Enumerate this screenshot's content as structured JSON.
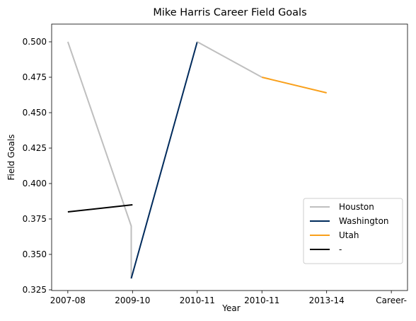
{
  "chart_data": {
    "type": "line",
    "title": "Mike Harris  Career Field Goals",
    "xlabel": "Year",
    "ylabel": "Field Goals",
    "x_ticks": [
      "2007-08",
      "2009-10",
      "2010-11",
      "2010-11",
      "2013-14",
      "Career-"
    ],
    "y_ticks": [
      "0.325",
      "0.350",
      "0.375",
      "0.400",
      "0.425",
      "0.450",
      "0.475",
      "0.500"
    ],
    "xlim": [
      -0.25,
      5.25
    ],
    "ylim": [
      0.3245,
      0.5125
    ],
    "legend_position": "lower-right",
    "grid": false,
    "series": [
      {
        "name": "Houston",
        "color": "#bfbfbf",
        "points": [
          [
            0,
            0.5
          ],
          [
            0.98,
            0.37
          ],
          [
            0.98,
            0.333
          ]
        ]
      },
      {
        "name": "Washington",
        "color": "#002b5c",
        "points": [
          [
            0.98,
            0.333
          ],
          [
            2.0,
            0.5
          ]
        ]
      },
      {
        "name": "Houston",
        "color": "#bfbfbf",
        "legend": false,
        "points": [
          [
            2.0,
            0.5
          ],
          [
            3.0,
            0.475
          ]
        ]
      },
      {
        "name": "Utah",
        "color": "#f9a01b",
        "points": [
          [
            3.0,
            0.475
          ],
          [
            4.0,
            0.464
          ]
        ]
      },
      {
        "name": "-",
        "color": "#000000",
        "points": [
          [
            0,
            0.38
          ],
          [
            1.0,
            0.385
          ]
        ]
      }
    ]
  }
}
